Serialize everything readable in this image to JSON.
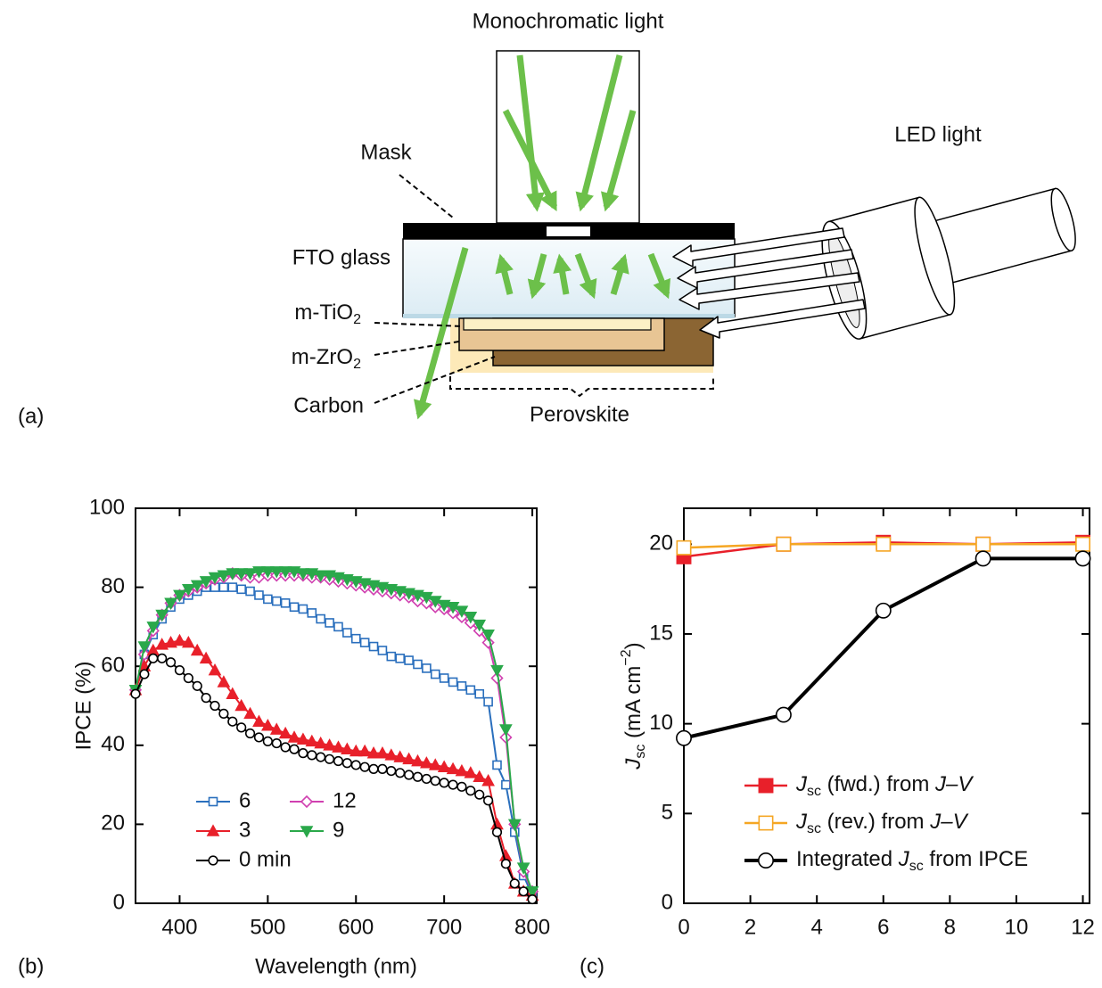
{
  "diagram": {
    "panel_label": "(a)",
    "monochromatic": "Monochromatic light",
    "led": "LED light",
    "mask": "Mask",
    "fto": "FTO glass",
    "tio2": [
      {
        "text": "m-TiO"
      },
      {
        "text": "2",
        "style": "sub"
      }
    ],
    "zro2": [
      {
        "text": "m-ZrO"
      },
      {
        "text": "2",
        "style": "sub"
      }
    ],
    "carbon": "Carbon",
    "perovskite": "Perovskite"
  },
  "chart_data": [
    {
      "type": "line",
      "panel_label": "(b)",
      "x_label": "Wavelength (nm)",
      "y_label": "IPCE (%)",
      "xlim": [
        350,
        805
      ],
      "ylim": [
        0,
        100
      ],
      "xticks": [
        400,
        500,
        600,
        700,
        800
      ],
      "yticks": [
        0,
        20,
        40,
        60,
        80,
        100
      ],
      "legend": "lower left",
      "legend_columns": 2,
      "x": [
        350,
        360,
        370,
        380,
        390,
        400,
        410,
        420,
        430,
        440,
        450,
        460,
        470,
        480,
        490,
        500,
        510,
        520,
        530,
        540,
        550,
        560,
        570,
        580,
        590,
        600,
        610,
        620,
        630,
        640,
        650,
        660,
        670,
        680,
        690,
        700,
        710,
        720,
        730,
        740,
        750,
        760,
        770,
        780,
        790,
        800
      ],
      "series": [
        {
          "name": "6",
          "color": "#2a6fbd",
          "marker": "square",
          "filled": false,
          "values": [
            54,
            63,
            68,
            72,
            75,
            77,
            78,
            79,
            80,
            80,
            80,
            80,
            79.5,
            79,
            78,
            77,
            76.5,
            76,
            75,
            74.5,
            73.5,
            72,
            71,
            70,
            68.5,
            67,
            66,
            65,
            64,
            62.5,
            62,
            61.5,
            60.5,
            59.5,
            58,
            57,
            56,
            55,
            54,
            53,
            51,
            35,
            30,
            18,
            7,
            2
          ]
        },
        {
          "name": "12",
          "color": "#d040b0",
          "marker": "diamond",
          "filled": false,
          "values": [
            54,
            63,
            69,
            73,
            76,
            78,
            79,
            80,
            81,
            82,
            82.5,
            83.5,
            83,
            82.5,
            82.5,
            83,
            83,
            83,
            83,
            83,
            82.5,
            82.5,
            82,
            81.5,
            81,
            80.5,
            80,
            79.5,
            79,
            78.5,
            78,
            77.5,
            76.5,
            76,
            75,
            74.5,
            73.5,
            72.5,
            71,
            69,
            66,
            57,
            42,
            20,
            8,
            3
          ]
        },
        {
          "name": "3",
          "color": "#e8202a",
          "marker": "triangle",
          "filled": true,
          "values": [
            54,
            60,
            64,
            65.5,
            66,
            66.5,
            66,
            64,
            62,
            59,
            56,
            53,
            50,
            48,
            46,
            45,
            44,
            43,
            42,
            41.5,
            41,
            40.5,
            40,
            39.5,
            39,
            38.5,
            38.5,
            38,
            38,
            37.5,
            37,
            36.5,
            36,
            35.5,
            35,
            34.5,
            34,
            33.5,
            33,
            32,
            31,
            20,
            12,
            5,
            3,
            2
          ]
        },
        {
          "name": "9",
          "color": "#2aa84a",
          "marker": "triangle-down",
          "filled": true,
          "values": [
            54,
            65,
            70,
            73,
            76,
            78,
            79.5,
            80.5,
            81.5,
            82.5,
            83,
            83.5,
            83.5,
            83.5,
            84,
            84,
            84,
            84,
            84,
            83.5,
            83.5,
            83,
            83,
            82.5,
            82,
            81.5,
            81,
            80.5,
            80,
            79.5,
            79,
            78.5,
            78,
            77.5,
            76.5,
            75.5,
            75,
            74,
            72.5,
            70.5,
            68,
            59,
            44,
            20,
            9,
            3
          ]
        },
        {
          "name": "0 min",
          "color": "#000000",
          "marker": "circle",
          "filled": false,
          "values": [
            53,
            58,
            62,
            62,
            61,
            59,
            57,
            55,
            52,
            50,
            48,
            46,
            44.5,
            43,
            42,
            41,
            40.5,
            39.5,
            39,
            38,
            37.5,
            37,
            36.5,
            36,
            35.5,
            35,
            34.5,
            34,
            34,
            33.5,
            33,
            32.5,
            32,
            31.5,
            31,
            30.5,
            30,
            29.5,
            28.5,
            27.5,
            26,
            18,
            10,
            5,
            3,
            1
          ]
        }
      ]
    },
    {
      "type": "line",
      "panel_label": "(c)",
      "y_label": [
        {
          "text": "J",
          "style": "italic"
        },
        {
          "text": "sc",
          "style": "sub"
        },
        {
          "text": " (mA cm"
        },
        {
          "text": "−2",
          "style": "sup"
        },
        {
          "text": ")"
        }
      ],
      "xlim": [
        0,
        12.2
      ],
      "ylim": [
        0,
        22
      ],
      "xticks": [
        0,
        2,
        4,
        6,
        8,
        10,
        12
      ],
      "yticks": [
        0,
        5,
        10,
        15,
        20
      ],
      "legend": "lower left",
      "legend_columns": 1,
      "x": [
        0,
        3,
        6,
        9,
        12
      ],
      "series": [
        {
          "name": [
            {
              "text": "J",
              "style": "italic"
            },
            {
              "text": "sc",
              "style": "sub"
            },
            {
              "text": " (fwd.) from "
            },
            {
              "text": "J–V",
              "style": "italic"
            }
          ],
          "color": "#e8202a",
          "marker": "square",
          "filled": true,
          "values": [
            19.3,
            20,
            20.1,
            20,
            20.1
          ]
        },
        {
          "name": [
            {
              "text": "J",
              "style": "italic"
            },
            {
              "text": "sc",
              "style": "sub"
            },
            {
              "text": " (rev.) from "
            },
            {
              "text": "J–V",
              "style": "italic"
            }
          ],
          "color": "#f5a623",
          "marker": "square",
          "filled": false,
          "values": [
            19.8,
            20,
            20,
            20,
            20
          ]
        },
        {
          "name": [
            {
              "text": "Integrated "
            },
            {
              "text": "J",
              "style": "italic"
            },
            {
              "text": "sc",
              "style": "sub"
            },
            {
              "text": " from IPCE"
            }
          ],
          "color": "#000000",
          "marker": "circle",
          "filled": false,
          "values": [
            9.2,
            10.5,
            16.3,
            19.2,
            19.2
          ]
        }
      ]
    }
  ]
}
